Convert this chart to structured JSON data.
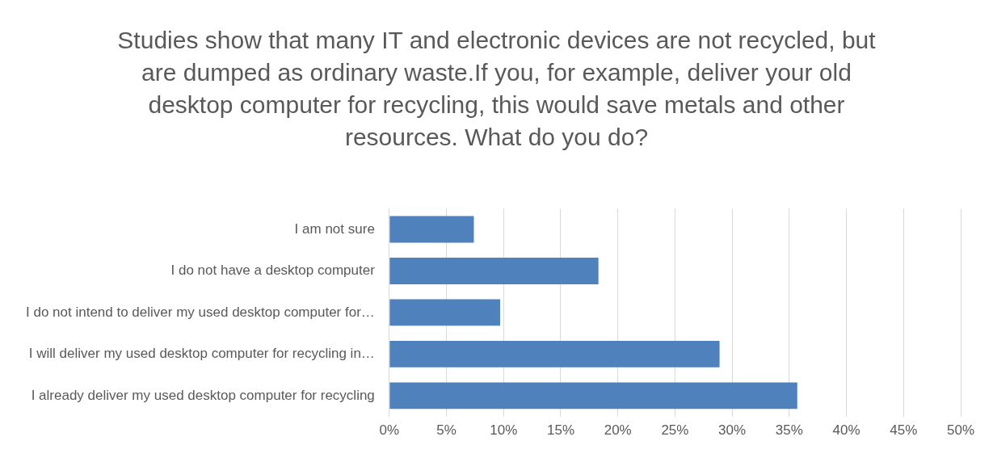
{
  "chart_data": {
    "type": "bar",
    "orientation": "horizontal",
    "title": "Studies show that many IT and electronic devices are not recycled, but are dumped as ordinary waste.If you, for example, deliver your old desktop computer for recycling, this would save metals and other resources. What do you do?",
    "categories": [
      "I am not sure",
      "I do not have a desktop computer",
      "I do not intend to deliver my used desktop computer for…",
      "I will deliver my used desktop computer for recycling in…",
      "I already deliver my used desktop computer for recycling"
    ],
    "values": [
      7.4,
      18.3,
      9.7,
      28.9,
      35.7
    ],
    "color": "#4f81bd",
    "xlim": [
      0,
      50
    ],
    "xticks": [
      {
        "value": 0,
        "label": "0%"
      },
      {
        "value": 5,
        "label": "5%"
      },
      {
        "value": 10,
        "label": "10%"
      },
      {
        "value": 15,
        "label": "15%"
      },
      {
        "value": 20,
        "label": "20%"
      },
      {
        "value": 25,
        "label": "25%"
      },
      {
        "value": 30,
        "label": "30%"
      },
      {
        "value": 35,
        "label": "35%"
      },
      {
        "value": 40,
        "label": "40%"
      },
      {
        "value": 45,
        "label": "45%"
      },
      {
        "value": 50,
        "label": "50%"
      }
    ],
    "grid": "x",
    "legend": false
  }
}
